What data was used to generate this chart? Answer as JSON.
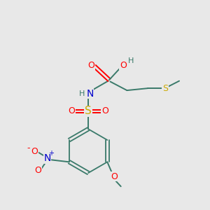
{
  "bg_color": "#e8e8e8",
  "colors": {
    "C": "#3a7a6a",
    "H": "#3a7a6a",
    "O": "#ff0000",
    "N": "#0000cc",
    "S": "#ccaa00",
    "bond": "#3a7a6a"
  },
  "figsize": [
    3.0,
    3.0
  ],
  "dpi": 100,
  "xlim": [
    0,
    10
  ],
  "ylim": [
    0,
    10
  ]
}
